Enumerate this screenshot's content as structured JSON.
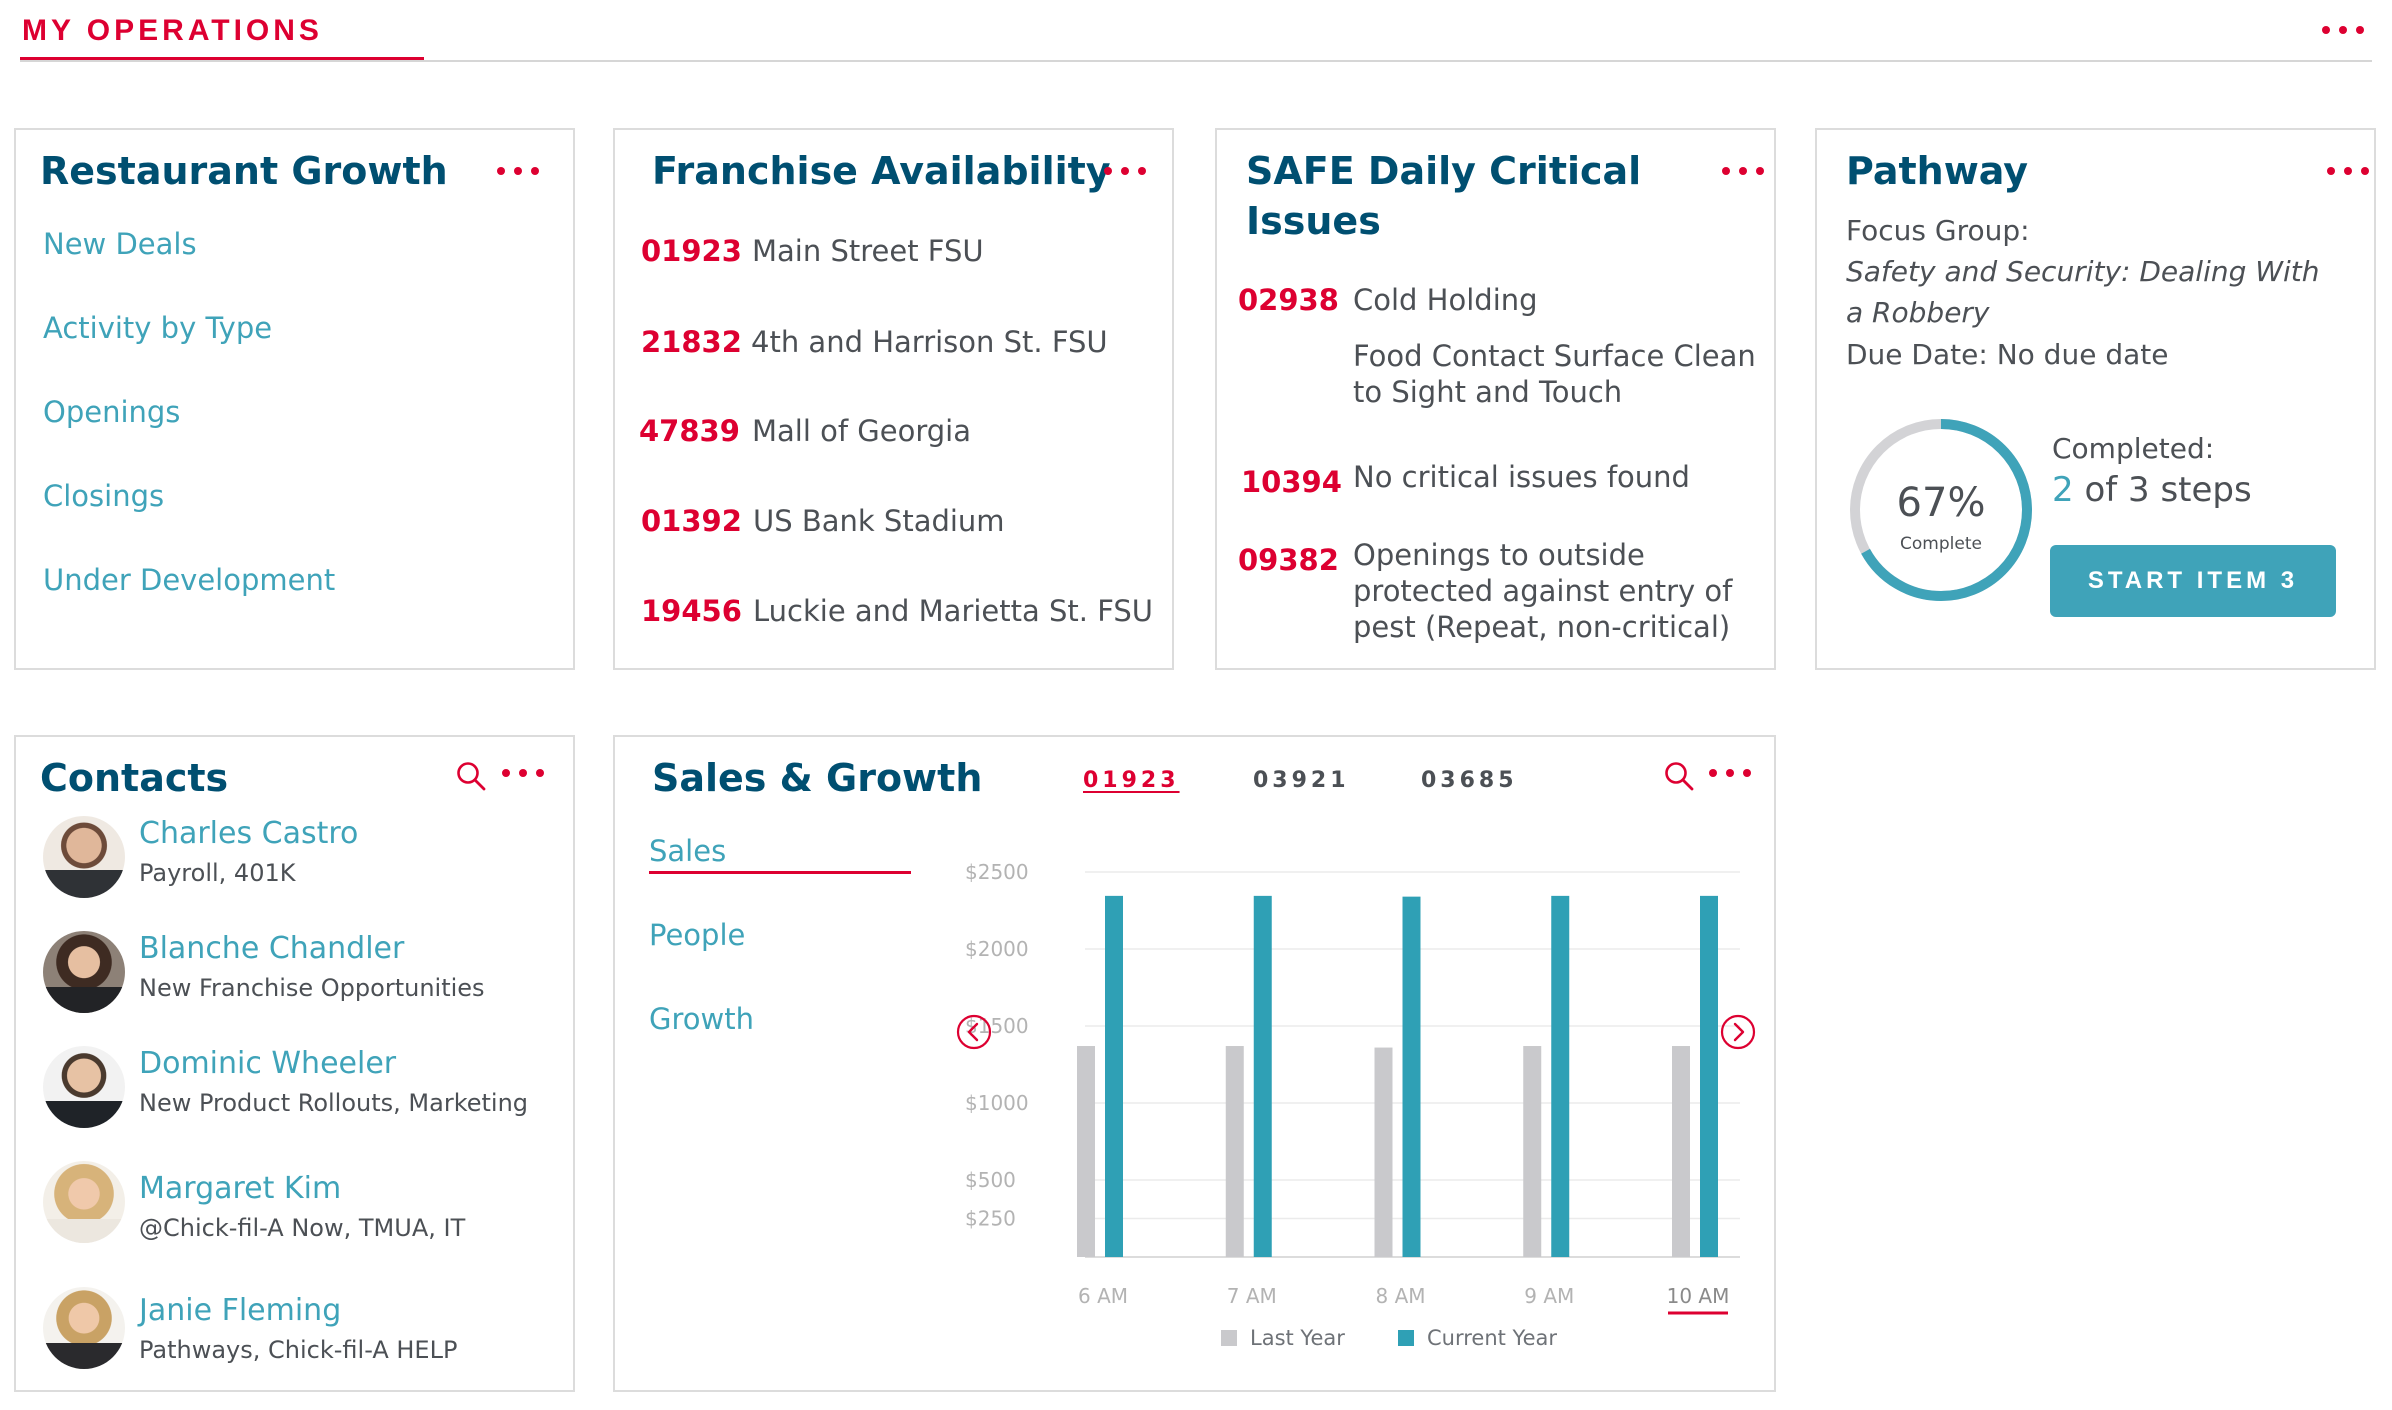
{
  "header": {
    "title": "MY OPERATIONS"
  },
  "restaurant_growth": {
    "title": "Restaurant Growth",
    "links": [
      "New Deals",
      "Activity by Type",
      "Openings",
      "Closings",
      "Under Development"
    ]
  },
  "franchise_availability": {
    "title": "Franchise Availability",
    "rows": [
      {
        "id": "01923",
        "name": "Main Street FSU"
      },
      {
        "id": "21832",
        "name": "4th and Harrison St. FSU"
      },
      {
        "id": "47839",
        "name": "Mall of Georgia"
      },
      {
        "id": "01392",
        "name": "US Bank Stadium"
      },
      {
        "id": "19456",
        "name": "Luckie and Marietta St. FSU"
      }
    ]
  },
  "safe_issues": {
    "title_line1": "SAFE Daily Critical",
    "title_line2": "Issues",
    "rows": [
      {
        "id": "02938",
        "lines": [
          "Cold Holding"
        ]
      },
      {
        "id": "",
        "lines": [
          "Food Contact Surface Clean",
          "to Sight and Touch"
        ]
      },
      {
        "id": "10394",
        "lines": [
          "No critical issues found"
        ]
      },
      {
        "id": "09382",
        "lines": [
          "Openings to outside",
          "protected against entry of",
          "pest (Repeat, non-critical)"
        ]
      }
    ]
  },
  "pathway": {
    "title": "Pathway",
    "focus_label": "Focus Group:",
    "focus_line1": "Safety and Security: Dealing With",
    "focus_line2": "a Robbery",
    "due_date": "Due Date: No due date",
    "percent": 67,
    "percent_label": "67%",
    "complete_label": "Complete",
    "completed_label": "Completed:",
    "steps_done": "2",
    "steps_rest": "of 3 steps",
    "button_label": "START ITEM 3"
  },
  "contacts": {
    "title": "Contacts",
    "items": [
      {
        "name": "Charles Castro",
        "role": "Payroll, 401K"
      },
      {
        "name": "Blanche Chandler",
        "role": "New Franchise Opportunities"
      },
      {
        "name": "Dominic Wheeler",
        "role": "New Product Rollouts, Marketing"
      },
      {
        "name": "Margaret Kim",
        "role": "@Chick-fil-A Now, TMUA, IT"
      },
      {
        "name": "Janie Fleming",
        "role": "Pathways, Chick-fil-A HELP"
      }
    ]
  },
  "sales_growth": {
    "title": "Sales & Growth",
    "store_tabs": [
      "01923",
      "03921",
      "03685"
    ],
    "active_store": "01923",
    "nav": [
      "Sales",
      "People",
      "Growth"
    ],
    "active_nav": "Sales"
  },
  "colors": {
    "accent_red": "#dd0031",
    "teal": "#3fa3b9",
    "navy": "#004f71",
    "grey_bar": "#c9c9cc"
  },
  "chart_data": {
    "type": "bar",
    "categories": [
      "6 AM",
      "7 AM",
      "8 AM",
      "9 AM",
      "10 AM"
    ],
    "active_category": "10 AM",
    "series": [
      {
        "name": "Last Year",
        "values": [
          1370,
          1370,
          1360,
          1370,
          1370
        ]
      },
      {
        "name": "Current Year",
        "values": [
          2345,
          2345,
          2340,
          2345,
          2345
        ]
      }
    ],
    "ytick_values": [
      250,
      500,
      1000,
      1500,
      2000,
      2500
    ],
    "ytick_labels": [
      "$250",
      "$500",
      "$1000",
      "$1500",
      "$2000",
      "$2500"
    ],
    "ylim": [
      0,
      2500
    ],
    "legend_position": "bottom"
  }
}
